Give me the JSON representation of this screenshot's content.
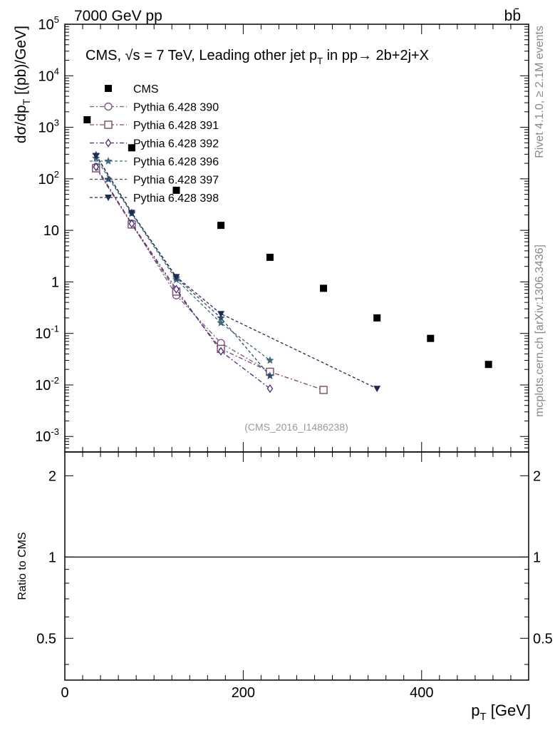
{
  "header": {
    "energy_label": "7000 GeV pp",
    "process_label": "bb̄"
  },
  "side_labels": {
    "rivet": "Rivet 4.1.0, ≥ 2.1M events",
    "mcplots": "mcplots.cern.ch [arXiv:1306.3436]"
  },
  "watermark": "(CMS_2016_I1486238)",
  "colors": {
    "cms": "#000000",
    "p390": "#7a5a82",
    "p391": "#7a4a66",
    "p392": "#4a2a7a",
    "p396": "#3f6a78",
    "p397": "#2e4c6e",
    "p398": "#1f2a55"
  },
  "chart_data": [
    {
      "type": "scatter",
      "title": "CMS, √s = 7 TeV, Leading other jet pT in pp→ 2b+2j+X",
      "ylabel": "dσ/dpT [(pb)/GeV]",
      "xlabel": "pT [GeV]",
      "xlim": [
        0,
        520
      ],
      "ylim": [
        0.0005,
        100000
      ],
      "yscale": "log",
      "xticks": [
        0,
        200,
        400
      ],
      "yticks": [
        {
          "v": 0.001,
          "label": "10^-3"
        },
        {
          "v": 0.01,
          "label": "10^-2"
        },
        {
          "v": 0.1,
          "label": "10^-1"
        },
        {
          "v": 1,
          "label": "1"
        },
        {
          "v": 10,
          "label": "10"
        },
        {
          "v": 100,
          "label": "10^2"
        },
        {
          "v": 1000,
          "label": "10^3"
        },
        {
          "v": 10000,
          "label": "10^4"
        },
        {
          "v": 100000,
          "label": "10^5"
        }
      ],
      "legend_position": "top-left",
      "series": [
        {
          "name": "CMS",
          "marker": "filled-square",
          "line": "none",
          "color_key": "cms",
          "x": [
            25,
            75,
            125,
            175,
            230,
            290,
            350,
            410,
            475
          ],
          "y": [
            1400,
            400,
            60,
            12.5,
            3.0,
            0.75,
            0.2,
            0.08,
            0.025
          ]
        },
        {
          "name": "Pythia 6.428 390",
          "marker": "open-circle",
          "line": "dashdot",
          "color_key": "p390",
          "x": [
            35,
            75,
            125,
            175,
            230
          ],
          "y": [
            170,
            13.5,
            0.55,
            0.065,
            0.018
          ]
        },
        {
          "name": "Pythia 6.428 391",
          "marker": "open-square",
          "line": "dashdot",
          "color_key": "p391",
          "x": [
            35,
            75,
            125,
            175,
            230,
            290
          ],
          "y": [
            160,
            13,
            0.65,
            0.05,
            0.018,
            0.008
          ]
        },
        {
          "name": "Pythia 6.428 392",
          "marker": "open-diamond",
          "line": "dashdot",
          "color_key": "p392",
          "x": [
            35,
            75,
            125,
            175,
            230
          ],
          "y": [
            170,
            13.5,
            0.72,
            0.045,
            0.0085
          ]
        },
        {
          "name": "Pythia 6.428 396",
          "marker": "star",
          "line": "dashed",
          "color_key": "p396",
          "x": [
            35,
            75,
            125,
            175,
            230
          ],
          "y": [
            250,
            21,
            1.1,
            0.16,
            0.03
          ]
        },
        {
          "name": "Pythia 6.428 397",
          "marker": "star",
          "line": "dashed",
          "color_key": "p397",
          "x": [
            35,
            75,
            125,
            175,
            230
          ],
          "y": [
            290,
            22,
            1.2,
            0.2,
            0.015
          ]
        },
        {
          "name": "Pythia 6.428 398",
          "marker": "filled-triangle-down",
          "line": "dashed",
          "color_key": "p398",
          "x": [
            35,
            75,
            125,
            175,
            350
          ],
          "y": [
            280,
            22,
            1.25,
            0.24,
            0.0085
          ]
        }
      ]
    },
    {
      "type": "line",
      "title": "",
      "ylabel": "Ratio to CMS",
      "xlabel": "pT [GeV]",
      "xlim": [
        0,
        520
      ],
      "ylim": [
        0.35,
        2.45
      ],
      "yscale": "log",
      "yticks": [
        {
          "v": 0.5,
          "label": "0.5"
        },
        {
          "v": 1,
          "label": "1"
        },
        {
          "v": 2,
          "label": "2"
        }
      ],
      "reference_line": 1
    }
  ]
}
